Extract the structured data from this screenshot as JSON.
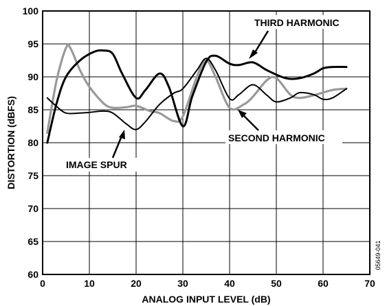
{
  "chart_data": {
    "type": "line",
    "xlabel": "ANALOG INPUT LEVEL (dB)",
    "ylabel": "DISTORTION (dBFS)",
    "xlim": [
      0,
      70
    ],
    "ylim": [
      60,
      100
    ],
    "xticks": [
      0,
      10,
      20,
      30,
      40,
      50,
      60,
      70
    ],
    "yticks": [
      60,
      65,
      70,
      75,
      80,
      85,
      90,
      95,
      100
    ],
    "grid": true,
    "legend": "none",
    "series": [
      {
        "name": "THIRD HARMONIC",
        "color": "#000000",
        "x": [
          1,
          3,
          5,
          8,
          11,
          13,
          15,
          17,
          20,
          22,
          25,
          27,
          30,
          32,
          35,
          37,
          40,
          42,
          45,
          48,
          52,
          55,
          58,
          60,
          62,
          65
        ],
        "y": [
          80,
          86,
          90,
          92.5,
          93.8,
          94,
          93.5,
          90.5,
          86.8,
          88,
          90.5,
          88.5,
          82.5,
          87,
          92.3,
          93.2,
          92,
          91.8,
          92.2,
          91,
          89.8,
          89.8,
          90.5,
          91.3,
          91.5,
          91.5
        ]
      },
      {
        "name": "SECOND HARMONIC",
        "color": "#999999",
        "x": [
          1,
          3,
          5,
          6,
          8,
          10,
          13,
          15,
          18,
          20,
          23,
          25,
          28,
          30,
          33,
          35,
          37,
          40,
          43,
          45,
          48,
          50,
          53,
          55,
          58,
          62,
          65
        ],
        "y": [
          81.5,
          89.5,
          94.4,
          94.3,
          91,
          88.5,
          86,
          85.3,
          85.4,
          85.6,
          84.8,
          84.5,
          83.3,
          84,
          90,
          92.5,
          90,
          85.3,
          85.8,
          87,
          89.5,
          89.8,
          87.3,
          86.8,
          87.2,
          88,
          88.2
        ]
      },
      {
        "name": "IMAGE SPUR",
        "color": "#000000",
        "x": [
          1,
          3,
          5,
          8,
          10,
          13,
          15,
          18,
          20,
          22,
          25,
          28,
          30,
          33,
          35,
          37,
          40,
          42,
          45,
          48,
          50,
          53,
          55,
          58,
          60,
          62,
          65
        ],
        "y": [
          86.8,
          85.5,
          84.5,
          84.5,
          84.6,
          84.8,
          84.5,
          82.8,
          82,
          83.2,
          85.8,
          87.5,
          88.2,
          91,
          92.8,
          91,
          86.7,
          87.3,
          88.8,
          87.2,
          86.2,
          86.8,
          87.6,
          87.3,
          86.6,
          86.8,
          88.2
        ]
      }
    ],
    "annotations": [
      {
        "text": "THIRD HARMONIC",
        "series": "THIRD HARMONIC"
      },
      {
        "text": "SECOND HARMONIC",
        "series": "SECOND HARMONIC"
      },
      {
        "text": "IMAGE SPUR",
        "series": "IMAGE SPUR"
      }
    ],
    "figure_id": "05649-041"
  }
}
